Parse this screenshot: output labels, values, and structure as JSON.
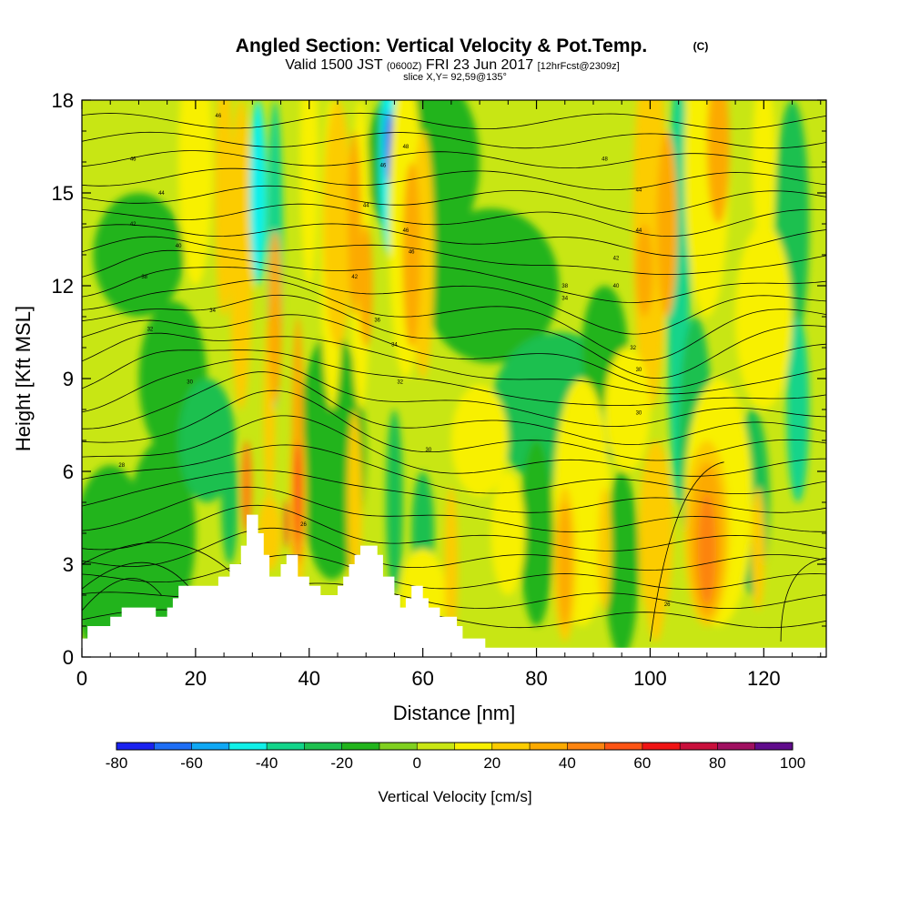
{
  "title": {
    "main": "Angled Section: Vertical Velocity & Pot.Temp.",
    "main_tag": "(C)",
    "valid_prefix": "Valid 1500 JST",
    "valid_z": "(0600Z)",
    "valid_date": "FRI 23 Jun 2017",
    "valid_fcst": "[12hrFcst@2309z]",
    "slice": "slice X,Y= 92,59@135°"
  },
  "chart_data": {
    "type": "heatmap",
    "xlabel": "Distance [nm]",
    "ylabel": "Height [Kft MSL]",
    "xlim": [
      0,
      131
    ],
    "ylim": [
      0,
      18
    ],
    "xticks": [
      0,
      20,
      40,
      60,
      80,
      100,
      120
    ],
    "yticks": [
      0,
      3,
      6,
      9,
      12,
      15,
      18
    ],
    "colorbar": {
      "label": "Vertical Velocity [cm/s]",
      "range": [
        -80,
        100
      ],
      "step": 10,
      "tick_values": [
        -80,
        -60,
        -40,
        -20,
        0,
        20,
        40,
        60,
        80,
        100
      ],
      "tick_labels": [
        "-80",
        "-60",
        "-40",
        "-20",
        "0",
        "20",
        "40",
        "60",
        "80",
        "100"
      ],
      "colors": [
        "#1a22f0",
        "#1e6ef5",
        "#10a8f4",
        "#10f0e8",
        "#12d48a",
        "#1ec050",
        "#22b41c",
        "#80d020",
        "#c8e614",
        "#f8f000",
        "#fccc00",
        "#fcaa00",
        "#fc8410",
        "#fc5414",
        "#f01414",
        "#c8103c",
        "#a01060",
        "#600c8c"
      ]
    },
    "terrain": [
      [
        0,
        0.6
      ],
      [
        1,
        0.6
      ],
      [
        1,
        1.0
      ],
      [
        5,
        1.0
      ],
      [
        5,
        1.3
      ],
      [
        7,
        1.3
      ],
      [
        7,
        1.6
      ],
      [
        13,
        1.6
      ],
      [
        13,
        1.3
      ],
      [
        15,
        1.3
      ],
      [
        15,
        1.6
      ],
      [
        16,
        1.6
      ],
      [
        16,
        1.9
      ],
      [
        17,
        1.9
      ],
      [
        17,
        2.3
      ],
      [
        24,
        2.3
      ],
      [
        24,
        2.6
      ],
      [
        26,
        2.6
      ],
      [
        26,
        3.0
      ],
      [
        28,
        3.0
      ],
      [
        28,
        3.6
      ],
      [
        29,
        3.6
      ],
      [
        29,
        4.6
      ],
      [
        31,
        4.6
      ],
      [
        31,
        4.0
      ],
      [
        32,
        4.0
      ],
      [
        32,
        3.3
      ],
      [
        33,
        3.3
      ],
      [
        33,
        2.6
      ],
      [
        35,
        2.6
      ],
      [
        35,
        3.0
      ],
      [
        36,
        3.0
      ],
      [
        36,
        3.3
      ],
      [
        38,
        3.3
      ],
      [
        38,
        2.6
      ],
      [
        40,
        2.6
      ],
      [
        40,
        2.3
      ],
      [
        42,
        2.3
      ],
      [
        42,
        2.0
      ],
      [
        45,
        2.0
      ],
      [
        45,
        2.3
      ],
      [
        46,
        2.3
      ],
      [
        46,
        2.6
      ],
      [
        47,
        2.6
      ],
      [
        47,
        3.0
      ],
      [
        48,
        3.0
      ],
      [
        48,
        3.3
      ],
      [
        49,
        3.3
      ],
      [
        49,
        3.6
      ],
      [
        52,
        3.6
      ],
      [
        52,
        3.3
      ],
      [
        53,
        3.3
      ],
      [
        53,
        2.6
      ],
      [
        55,
        2.6
      ],
      [
        55,
        2.0
      ],
      [
        56,
        2.0
      ],
      [
        56,
        1.6
      ],
      [
        57,
        1.6
      ],
      [
        57,
        1.9
      ],
      [
        58,
        1.9
      ],
      [
        58,
        2.3
      ],
      [
        60,
        2.3
      ],
      [
        60,
        1.9
      ],
      [
        61,
        1.9
      ],
      [
        61,
        1.6
      ],
      [
        63,
        1.6
      ],
      [
        63,
        1.3
      ],
      [
        66,
        1.3
      ],
      [
        66,
        1.0
      ],
      [
        67,
        1.0
      ],
      [
        67,
        0.6
      ],
      [
        71,
        0.6
      ],
      [
        71,
        0.3
      ],
      [
        131,
        0.3
      ]
    ],
    "isentrope_labels": [
      {
        "text": "46",
        "x": 24,
        "y": 17.5
      },
      {
        "text": "48",
        "x": 57,
        "y": 16.5
      },
      {
        "text": "48",
        "x": 92,
        "y": 16.1
      },
      {
        "text": "46",
        "x": 9,
        "y": 16.1
      },
      {
        "text": "46",
        "x": 53,
        "y": 15.9
      },
      {
        "text": "44",
        "x": 14,
        "y": 15.0
      },
      {
        "text": "44",
        "x": 98,
        "y": 15.1
      },
      {
        "text": "44",
        "x": 50,
        "y": 14.6
      },
      {
        "text": "42",
        "x": 9,
        "y": 14.0
      },
      {
        "text": "46",
        "x": 57,
        "y": 13.8
      },
      {
        "text": "44",
        "x": 98,
        "y": 13.8
      },
      {
        "text": "40",
        "x": 17,
        "y": 13.3
      },
      {
        "text": "46",
        "x": 58,
        "y": 13.1
      },
      {
        "text": "42",
        "x": 94,
        "y": 12.9
      },
      {
        "text": "38",
        "x": 11,
        "y": 12.3
      },
      {
        "text": "42",
        "x": 48,
        "y": 12.3
      },
      {
        "text": "38",
        "x": 85,
        "y": 12.0
      },
      {
        "text": "40",
        "x": 94,
        "y": 12.0
      },
      {
        "text": "34",
        "x": 85,
        "y": 11.6
      },
      {
        "text": "34",
        "x": 23,
        "y": 11.2
      },
      {
        "text": "36",
        "x": 52,
        "y": 10.9
      },
      {
        "text": "32",
        "x": 12,
        "y": 10.6
      },
      {
        "text": "34",
        "x": 55,
        "y": 10.1
      },
      {
        "text": "32",
        "x": 97,
        "y": 10.0
      },
      {
        "text": "30",
        "x": 98,
        "y": 9.3
      },
      {
        "text": "30",
        "x": 19,
        "y": 8.9
      },
      {
        "text": "32",
        "x": 56,
        "y": 8.9
      },
      {
        "text": "30",
        "x": 98,
        "y": 7.9
      },
      {
        "text": "30",
        "x": 61,
        "y": 6.7
      },
      {
        "text": "28",
        "x": 7,
        "y": 6.2
      },
      {
        "text": "26",
        "x": 39,
        "y": 4.3
      },
      {
        "text": "26",
        "x": 103,
        "y": 1.7
      }
    ]
  }
}
